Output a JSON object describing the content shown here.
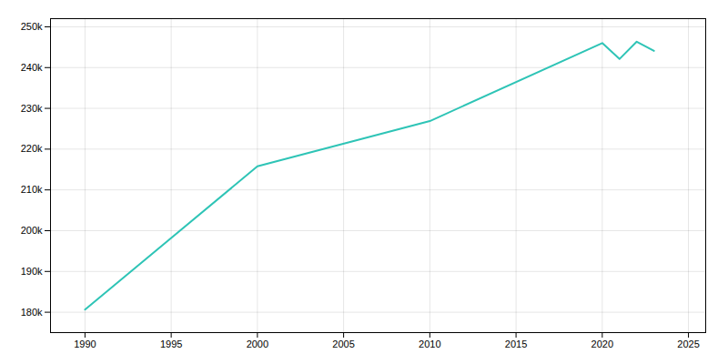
{
  "chart_data": {
    "type": "line",
    "x": [
      1990,
      2000,
      2010,
      2020,
      2021,
      2022,
      2023
    ],
    "values": [
      180650,
      215768,
      226876,
      246018,
      242100,
      246354,
      244100
    ],
    "color": "#2EC4B6",
    "xlim": [
      1988,
      2026
    ],
    "ylim": [
      175000,
      252000
    ],
    "xticks": [
      1990,
      1995,
      2000,
      2005,
      2010,
      2015,
      2020,
      2025
    ],
    "yticks": [
      {
        "value": 180000,
        "label": "180k"
      },
      {
        "value": 190000,
        "label": "190k"
      },
      {
        "value": 200000,
        "label": "200k"
      },
      {
        "value": 210000,
        "label": "210k"
      },
      {
        "value": 220000,
        "label": "220k"
      },
      {
        "value": 230000,
        "label": "230k"
      },
      {
        "value": 240000,
        "label": "240k"
      },
      {
        "value": 250000,
        "label": "250k"
      }
    ],
    "grid": true
  }
}
